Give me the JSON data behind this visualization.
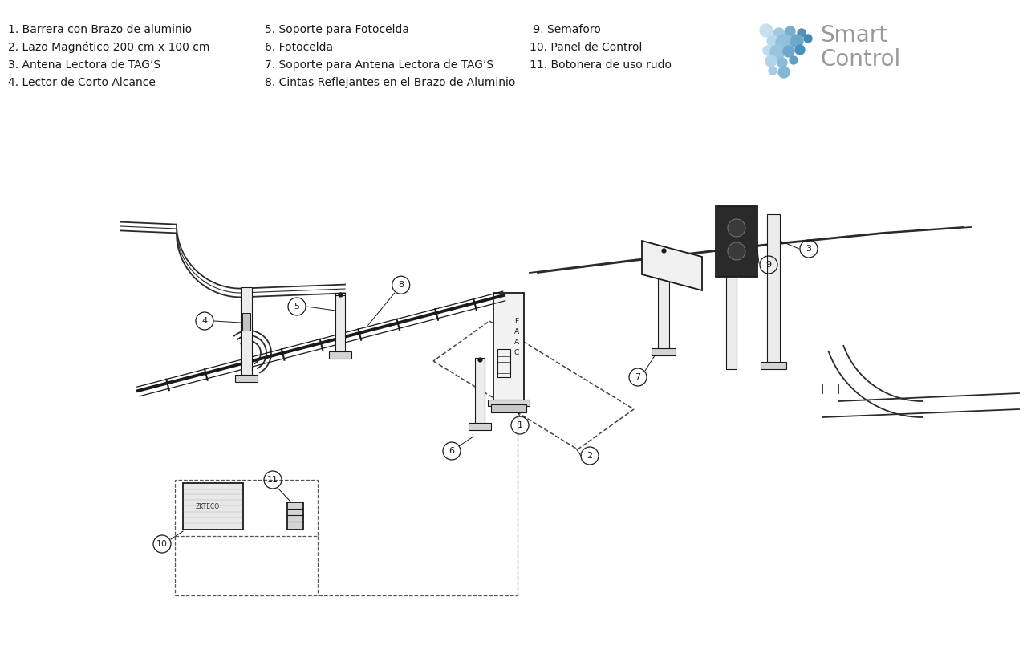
{
  "bg_color": "#ffffff",
  "line_color": "#1a1a1a",
  "col1": [
    "1. Barrera con Brazo de aluminio",
    "2. Lazo Magnético 200 cm x 100 cm",
    "3. Antena Lectora de TAG’S",
    "4. Lector de Corto Alcance"
  ],
  "col2": [
    "5. Soporte para Fotocelda",
    "6. Fotocelda",
    "7. Soporte para Antena Lectora de TAG’S",
    "8. Cintas Reflejantes en el Brazo de Aluminio"
  ],
  "col3": [
    " 9. Semaforo",
    "10. Panel de Control",
    "11. Botonera de uso rudo"
  ],
  "smart_color": "#999999",
  "dot_positions": [
    [
      0,
      0,
      8,
      "#c8dff0"
    ],
    [
      16,
      4,
      7,
      "#a0c8e0"
    ],
    [
      30,
      1,
      6,
      "#7aaec8"
    ],
    [
      44,
      3,
      5,
      "#5590b8"
    ],
    [
      8,
      13,
      7,
      "#b8d8f0"
    ],
    [
      22,
      15,
      10,
      "#90c0dc"
    ],
    [
      38,
      13,
      8,
      "#6aaac8"
    ],
    [
      52,
      10,
      5,
      "#4888b4"
    ],
    [
      2,
      25,
      6,
      "#c0daf0"
    ],
    [
      14,
      27,
      9,
      "#98c4e0"
    ],
    [
      28,
      26,
      7,
      "#70a8cc"
    ],
    [
      42,
      24,
      6,
      "#4890c0"
    ],
    [
      6,
      38,
      7,
      "#b0d4ec"
    ],
    [
      20,
      40,
      6,
      "#88bcd8"
    ],
    [
      34,
      37,
      5,
      "#60a0c4"
    ],
    [
      8,
      50,
      5,
      "#a8cce8"
    ],
    [
      22,
      52,
      7,
      "#80b8d8"
    ]
  ]
}
